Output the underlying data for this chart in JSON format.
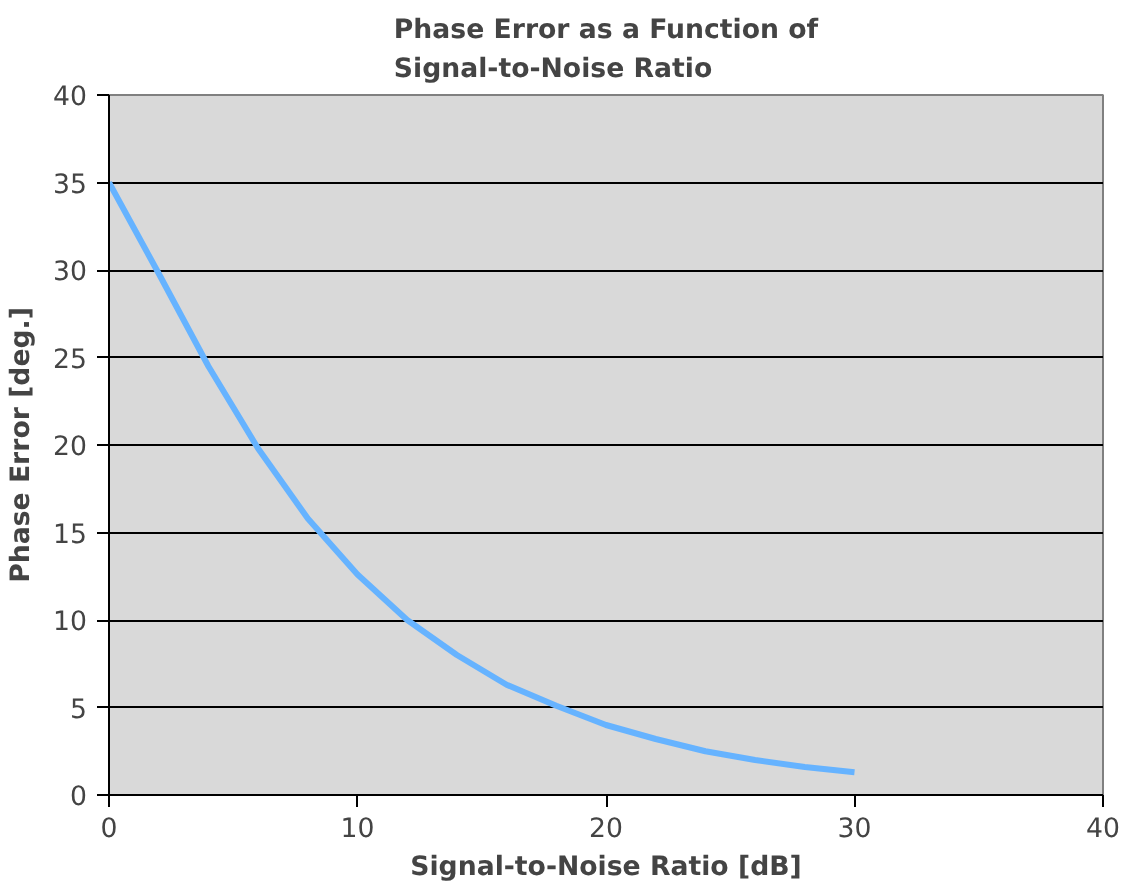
{
  "chart_data": {
    "type": "line",
    "title": "Phase Error as a Function of\nSignal-to-Noise Ratio",
    "xlabel": "Signal-to-Noise Ratio [dB]",
    "ylabel": "Phase Error [deg.]",
    "x": [
      0,
      2,
      4,
      6,
      8,
      10,
      12,
      14,
      16,
      18,
      20,
      22,
      24,
      26,
      28,
      30
    ],
    "series": [
      {
        "color": "#66b3ff",
        "values": [
          35,
          29.8,
          24.5,
          19.8,
          15.8,
          12.6,
          10,
          8,
          6.3,
          5.1,
          4.0,
          3.2,
          2.5,
          2.0,
          1.6,
          1.3
        ]
      }
    ],
    "xlim": [
      0,
      40
    ],
    "xticks": [
      0,
      10,
      20,
      30,
      40
    ],
    "ylim": [
      0,
      40
    ],
    "yticks": [
      0,
      5,
      10,
      15,
      20,
      25,
      30,
      35,
      40
    ],
    "grid": "y",
    "marker": "none",
    "line_style": "solid"
  }
}
